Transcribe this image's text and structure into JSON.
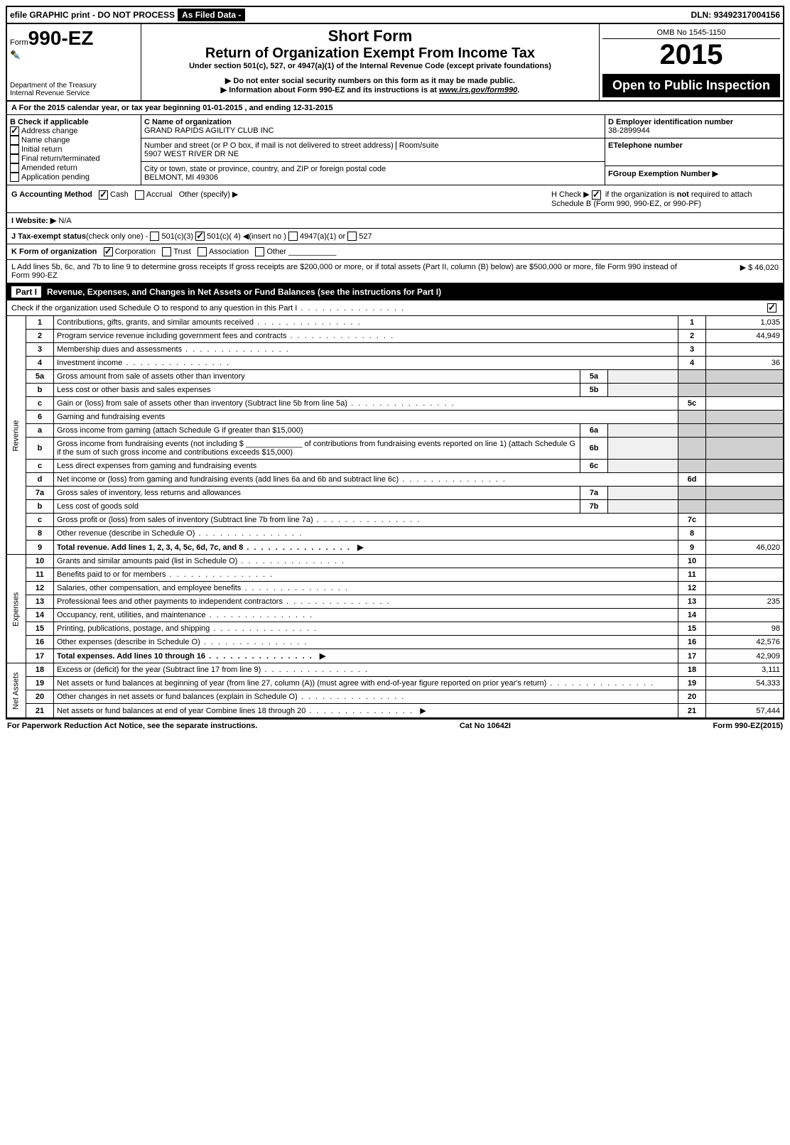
{
  "topbar": {
    "efile": "efile GRAPHIC print - DO NOT PROCESS",
    "asfiled": "As Filed Data -",
    "dln_label": "DLN:",
    "dln": "93492317004156"
  },
  "header": {
    "form_label": "Form",
    "form_no": "990-EZ",
    "dept": "Department of the Treasury\nInternal Revenue Service",
    "short_form": "Short Form",
    "title": "Return of Organization Exempt From Income Tax",
    "under": "Under section 501(c), 527, or 4947(a)(1) of the Internal Revenue Code (except private foundations)",
    "warn1": "▶ Do not enter social security numbers on this form as it may be made public.",
    "warn2": "▶ Information about Form 990-EZ and its instructions is at ",
    "link": "www.irs.gov/form990",
    "omb": "OMB No 1545-1150",
    "year": "2015",
    "open": "Open to Public Inspection"
  },
  "row_a": "A  For the 2015 calendar year, or tax year beginning 01-01-2015              , and ending 12-31-2015",
  "col_b": {
    "label": "B Check if applicable",
    "items": [
      "Address change",
      "Name change",
      "Initial return",
      "Final return/terminated",
      "Amended return",
      "Application pending"
    ],
    "checked": [
      true,
      false,
      false,
      false,
      false,
      false
    ]
  },
  "col_c": {
    "name_label": "C Name of organization",
    "name": "GRAND RAPIDS AGILITY CLUB INC",
    "street_label": "Number and street (or P O box, if mail is not delivered to street address)",
    "room_label": "Room/suite",
    "street": "5907 WEST RIVER DR NE",
    "city_label": "City or town, state or province, country, and ZIP or foreign postal code",
    "city": "BELMONT, MI 49306"
  },
  "col_d": {
    "label": "D Employer identification number",
    "ein": "38-2899944",
    "e_label": "ETelephone number",
    "f_label": "FGroup Exemption Number  ▶"
  },
  "g": {
    "label": "G Accounting Method",
    "cash": "Cash",
    "accrual": "Accrual",
    "other": "Other (specify) ▶"
  },
  "h": {
    "text1": "H  Check ▶ ",
    "text2": " if the organization is ",
    "not": "not",
    "text3": " required to attach Schedule B (Form 990, 990-EZ, or 990-PF)"
  },
  "i": {
    "label": "I Website: ▶",
    "value": "N/A"
  },
  "j": {
    "label": "J Tax-exempt status",
    "text": "(check only one) -",
    "o1": "501(c)(3)",
    "o2": "501(c)( 4) ◀(insert no )",
    "o3": "4947(a)(1) or",
    "o4": "527"
  },
  "k": {
    "label": "K Form of organization",
    "c": "Corporation",
    "t": "Trust",
    "a": "Association",
    "o": "Other"
  },
  "l": {
    "text": "L Add lines 5b, 6c, and 7b to line 9 to determine gross receipts If gross receipts are $200,000 or more, or if total assets (Part II, column (B) below) are $500,000 or more, file Form 990 instead of Form 990-EZ",
    "amount": "▶ $ 46,020"
  },
  "part1": {
    "label": "Part I",
    "title": "Revenue, Expenses, and Changes in Net Assets or Fund Balances",
    "sub": "(see the instructions for Part I)",
    "check": "Check if the organization used Schedule O to respond to any question in this Part I"
  },
  "lines": [
    {
      "n": "1",
      "d": "Contributions, gifts, grants, and similar amounts received",
      "r": "1",
      "a": "1,035"
    },
    {
      "n": "2",
      "d": "Program service revenue including government fees and contracts",
      "r": "2",
      "a": "44,949"
    },
    {
      "n": "3",
      "d": "Membership dues and assessments",
      "r": "3",
      "a": ""
    },
    {
      "n": "4",
      "d": "Investment income",
      "r": "4",
      "a": "36"
    },
    {
      "n": "5a",
      "d": "Gross amount from sale of assets other than inventory",
      "mid": "5a"
    },
    {
      "n": "b",
      "d": "Less cost or other basis and sales expenses",
      "mid": "5b"
    },
    {
      "n": "c",
      "d": "Gain or (loss) from sale of assets other than inventory (Subtract line 5b from line 5a)",
      "r": "5c",
      "a": ""
    },
    {
      "n": "6",
      "d": "Gaming and fundraising events"
    },
    {
      "n": "a",
      "d": "Gross income from gaming (attach Schedule G if greater than $15,000)",
      "mid": "6a"
    },
    {
      "n": "b",
      "d": "Gross income from fundraising events (not including $ _____________ of contributions from fundraising events reported on line 1) (attach Schedule G if the sum of such gross income and contributions exceeds $15,000)",
      "mid": "6b"
    },
    {
      "n": "c",
      "d": "Less direct expenses from gaming and fundraising events",
      "mid": "6c"
    },
    {
      "n": "d",
      "d": "Net income or (loss) from gaming and fundraising events (add lines 6a and 6b and subtract line 6c)",
      "r": "6d",
      "a": ""
    },
    {
      "n": "7a",
      "d": "Gross sales of inventory, less returns and allowances",
      "mid": "7a"
    },
    {
      "n": "b",
      "d": "Less cost of goods sold",
      "mid": "7b"
    },
    {
      "n": "c",
      "d": "Gross profit or (loss) from sales of inventory (Subtract line 7b from line 7a)",
      "r": "7c",
      "a": ""
    },
    {
      "n": "8",
      "d": "Other revenue (describe in Schedule O)",
      "r": "8",
      "a": ""
    },
    {
      "n": "9",
      "d": "Total revenue. Add lines 1, 2, 3, 4, 5c, 6d, 7c, and 8",
      "r": "9",
      "a": "46,020",
      "bold": true,
      "arrow": true
    },
    {
      "n": "10",
      "d": "Grants and similar amounts paid (list in Schedule O)",
      "r": "10",
      "a": ""
    },
    {
      "n": "11",
      "d": "Benefits paid to or for members",
      "r": "11",
      "a": ""
    },
    {
      "n": "12",
      "d": "Salaries, other compensation, and employee benefits",
      "r": "12",
      "a": ""
    },
    {
      "n": "13",
      "d": "Professional fees and other payments to independent contractors",
      "r": "13",
      "a": "235"
    },
    {
      "n": "14",
      "d": "Occupancy, rent, utilities, and maintenance",
      "r": "14",
      "a": ""
    },
    {
      "n": "15",
      "d": "Printing, publications, postage, and shipping",
      "r": "15",
      "a": "98"
    },
    {
      "n": "16",
      "d": "Other expenses (describe in Schedule O)",
      "r": "16",
      "a": "42,576"
    },
    {
      "n": "17",
      "d": "Total expenses. Add lines 10 through 16",
      "r": "17",
      "a": "42,909",
      "bold": true,
      "arrow": true
    },
    {
      "n": "18",
      "d": "Excess or (deficit) for the year (Subtract line 17 from line 9)",
      "r": "18",
      "a": "3,111"
    },
    {
      "n": "19",
      "d": "Net assets or fund balances at beginning of year (from line 27, column (A)) (must agree with end-of-year figure reported on prior year's return)",
      "r": "19",
      "a": "54,333"
    },
    {
      "n": "20",
      "d": "Other changes in net assets or fund balances (explain in Schedule O)",
      "r": "20",
      "a": ""
    },
    {
      "n": "21",
      "d": "Net assets or fund balances at end of year Combine lines 18 through 20",
      "r": "21",
      "a": "57,444",
      "arrow": true
    }
  ],
  "vlabels": {
    "rev": "Revenue",
    "exp": "Expenses",
    "net": "Net Assets"
  },
  "footer": {
    "left": "For Paperwork Reduction Act Notice, see the separate instructions.",
    "mid": "Cat No 10642I",
    "right": "Form 990-EZ (2015)"
  }
}
